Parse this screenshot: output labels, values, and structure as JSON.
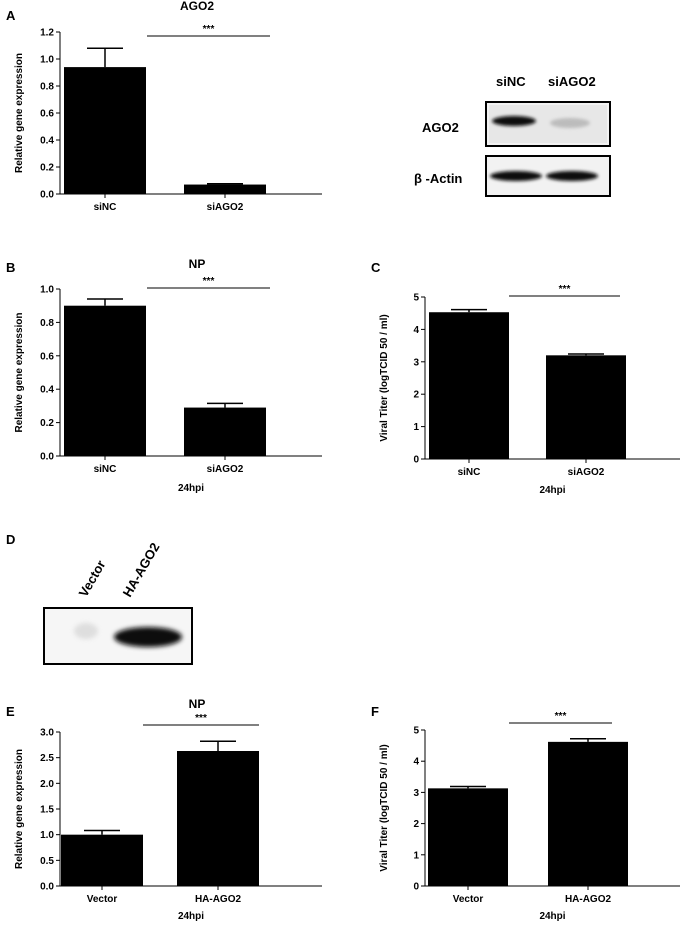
{
  "panel_labels": {
    "A": "A",
    "B": "B",
    "C": "C",
    "D": "D",
    "E": "E",
    "F": "F"
  },
  "chart_data": [
    {
      "id": "A",
      "type": "bar",
      "title": "AGO2",
      "ylabel": "Relative gene expression",
      "xlabel": "",
      "categories": [
        "siNC",
        "siAGO2"
      ],
      "values": [
        0.94,
        0.07
      ],
      "errors": [
        0.14,
        0.006
      ],
      "ylim": [
        0,
        1.2
      ],
      "yticks": [
        "0.0",
        "0.2",
        "0.4",
        "0.6",
        "0.8",
        "1.0",
        "1.2"
      ],
      "significance": "***",
      "grid": false
    },
    {
      "id": "B",
      "type": "bar",
      "title": "NP",
      "ylabel": "Relative gene expression",
      "xlabel": "24hpi",
      "categories": [
        "siNC",
        "siAGO2"
      ],
      "values": [
        0.9,
        0.29
      ],
      "errors": [
        0.04,
        0.025
      ],
      "ylim": [
        0,
        1.0
      ],
      "yticks": [
        "0.0",
        "0.2",
        "0.4",
        "0.6",
        "0.8",
        "1.0"
      ],
      "significance": "***",
      "grid": false
    },
    {
      "id": "C",
      "type": "bar",
      "title": "",
      "ylabel": "Viral Titer (logTCID 50 / ml)",
      "xlabel": "24hpi",
      "categories": [
        "siNC",
        "siAGO2"
      ],
      "values": [
        4.53,
        3.2
      ],
      "errors": [
        0.08,
        0.04
      ],
      "ylim": [
        0,
        5
      ],
      "yticks": [
        "0",
        "1",
        "2",
        "3",
        "4",
        "5"
      ],
      "significance": "***",
      "grid": false
    },
    {
      "id": "E",
      "type": "bar",
      "title": "NP",
      "ylabel": "Relative gene expression",
      "xlabel": "24hpi",
      "categories": [
        "Vector",
        "HA-AGO2"
      ],
      "values": [
        1.0,
        2.63
      ],
      "errors": [
        0.08,
        0.19
      ],
      "ylim": [
        0,
        3.0
      ],
      "yticks": [
        "0.0",
        "0.5",
        "1.0",
        "1.5",
        "2.0",
        "2.5",
        "3.0"
      ],
      "significance": "***",
      "grid": false
    },
    {
      "id": "F",
      "type": "bar",
      "title": "",
      "ylabel": "Viral Titer (logTCID 50 / ml)",
      "xlabel": "24hpi",
      "categories": [
        "Vector",
        "HA-AGO2"
      ],
      "values": [
        3.13,
        4.62
      ],
      "errors": [
        0.06,
        0.1
      ],
      "ylim": [
        0,
        5
      ],
      "yticks": [
        "0",
        "1",
        "2",
        "3",
        "4",
        "5"
      ],
      "significance": "***",
      "grid": false
    }
  ],
  "blot_A": {
    "lanes": [
      "siNC",
      "siAGO2"
    ],
    "rows": [
      "AGO2",
      "β -Actin"
    ]
  },
  "blot_D": {
    "lanes": [
      "Vector",
      "HA-AGO2"
    ]
  }
}
